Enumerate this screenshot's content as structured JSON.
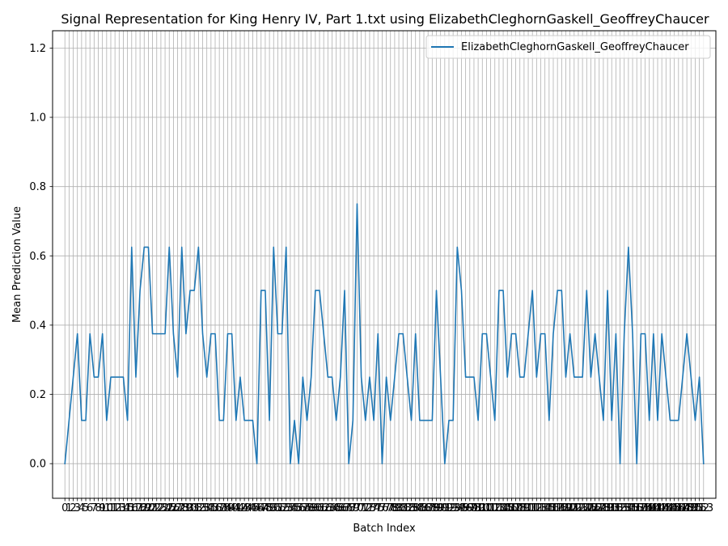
{
  "chart_data": {
    "type": "line",
    "title": "Signal Representation for King Henry IV, Part 1.txt using ElizabethCleghornGaskell_GeoffreyChaucer",
    "xlabel": "Batch Index",
    "ylabel": "Mean Prediction Value",
    "ylim": [
      -0.1,
      1.25
    ],
    "xlim": [
      -2.95,
      155.95
    ],
    "grid": true,
    "legend_position": "top-right",
    "line_color": "#1f77b4",
    "y_ticks": [
      "0.0",
      "0.2",
      "0.4",
      "0.6",
      "0.8",
      "1.0",
      "1.2"
    ],
    "x": [
      0,
      1,
      2,
      3,
      4,
      5,
      6,
      7,
      8,
      9,
      10,
      11,
      12,
      13,
      14,
      15,
      16,
      17,
      18,
      19,
      20,
      21,
      22,
      23,
      24,
      25,
      26,
      27,
      28,
      29,
      30,
      31,
      32,
      33,
      34,
      35,
      36,
      37,
      38,
      39,
      40,
      41,
      42,
      43,
      44,
      45,
      46,
      47,
      48,
      49,
      50,
      51,
      52,
      53,
      54,
      55,
      56,
      57,
      58,
      59,
      60,
      61,
      62,
      63,
      64,
      65,
      66,
      67,
      68,
      69,
      70,
      71,
      72,
      73,
      74,
      75,
      76,
      77,
      78,
      79,
      80,
      81,
      82,
      83,
      84,
      85,
      86,
      87,
      88,
      89,
      90,
      91,
      92,
      93,
      94,
      95,
      96,
      97,
      98,
      99,
      100,
      101,
      102,
      103,
      104,
      105,
      106,
      107,
      108,
      109,
      110,
      111,
      112,
      113,
      114,
      115,
      116,
      117,
      118,
      119,
      120,
      121,
      122,
      123,
      124,
      125,
      126,
      127,
      128,
      129,
      130,
      131,
      132,
      133,
      134,
      135,
      136,
      137,
      138,
      139,
      140,
      141,
      142,
      143,
      144,
      145,
      146,
      147,
      148,
      149,
      150,
      151,
      152,
      153
    ],
    "series": [
      {
        "name": "ElizabethCleghornGaskell_GeoffreyChaucer",
        "values": [
          0,
          0.125,
          0.25,
          0.375,
          0.125,
          0.125,
          0.375,
          0.25,
          0.25,
          0.375,
          0.125,
          0.25,
          0.25,
          0.25,
          0.25,
          0.125,
          0.625,
          0.25,
          0.5,
          0.625,
          0.625,
          0.375,
          0.375,
          0.375,
          0.375,
          0.625,
          0.375,
          0.25,
          0.625,
          0.375,
          0.5,
          0.5,
          0.625,
          0.375,
          0.25,
          0.375,
          0.375,
          0.125,
          0.125,
          0.375,
          0.375,
          0.125,
          0.25,
          0.125,
          0.125,
          0.125,
          0,
          0.5,
          0.5,
          0.125,
          0.625,
          0.375,
          0.375,
          0.625,
          0,
          0.125,
          0,
          0.25,
          0.125,
          0.25,
          0.5,
          0.5,
          0.375,
          0.25,
          0.25,
          0.125,
          0.25,
          0.5,
          0,
          0.125,
          0.75,
          0.25,
          0.125,
          0.25,
          0.125,
          0.375,
          0,
          0.25,
          0.125,
          0.25,
          0.375,
          0.375,
          0.25,
          0.125,
          0.375,
          0.125,
          0.125,
          0.125,
          0.125,
          0.5,
          0.25,
          0,
          0.125,
          0.125,
          0.625,
          0.5,
          0.25,
          0.25,
          0.25,
          0.125,
          0.375,
          0.375,
          0.25,
          0.125,
          0.5,
          0.5,
          0.25,
          0.375,
          0.375,
          0.25,
          0.25,
          0.375,
          0.5,
          0.25,
          0.375,
          0.375,
          0.125,
          0.375,
          0.5,
          0.5,
          0.25,
          0.375,
          0.25,
          0.25,
          0.25,
          0.5,
          0.25,
          0.375,
          0.25,
          0.125,
          0.5,
          0.125,
          0.375,
          0,
          0.375,
          0.625,
          0.375,
          0,
          0.375,
          0.375,
          0.125,
          0.375,
          0.125,
          0.375,
          0.25,
          0.125,
          0.125,
          0.125,
          0.25,
          0.375,
          0.25,
          0.125,
          0.25,
          0
        ]
      }
    ]
  }
}
